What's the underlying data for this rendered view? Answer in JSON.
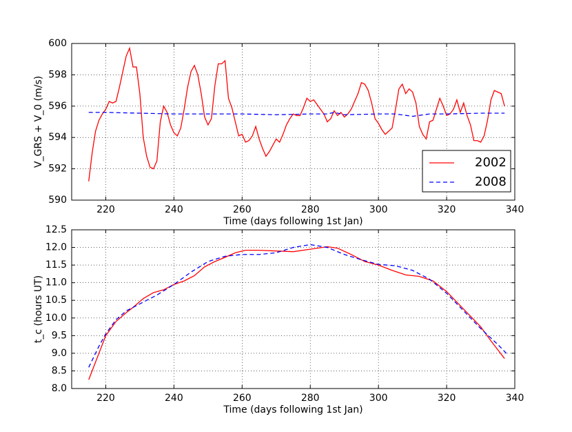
{
  "chart_data": [
    {
      "type": "line",
      "xlabel": "Time (days following 1st Jan)",
      "ylabel": "V_GRS + V_0 (m/s)",
      "xlim": [
        210,
        340
      ],
      "ylim": [
        590,
        600
      ],
      "xticks": [
        220,
        240,
        260,
        280,
        300,
        320,
        340
      ],
      "yticks": [
        590,
        592,
        594,
        596,
        598,
        600
      ],
      "grid": true,
      "legend": "lower right",
      "series": [
        {
          "name": "2002",
          "color": "#ff0000",
          "linestyle": "solid",
          "x": [
            215,
            216,
            217,
            218,
            219,
            220,
            221,
            222,
            223,
            224,
            225,
            226,
            227,
            228,
            229,
            230,
            231,
            232,
            233,
            234,
            235,
            236,
            237,
            238,
            239,
            240,
            241,
            242,
            243,
            244,
            245,
            246,
            247,
            248,
            249,
            250,
            251,
            252,
            253,
            254,
            255,
            256,
            257,
            258,
            259,
            260,
            261,
            262,
            263,
            264,
            265,
            266,
            267,
            268,
            269,
            270,
            271,
            272,
            273,
            274,
            275,
            276,
            277,
            278,
            279,
            280,
            281,
            282,
            283,
            284,
            285,
            286,
            287,
            288,
            289,
            290,
            291,
            292,
            293,
            294,
            295,
            296,
            297,
            298,
            299,
            300,
            301,
            302,
            303,
            304,
            305,
            306,
            307,
            308,
            309,
            310,
            311,
            312,
            313,
            314,
            315,
            316,
            317,
            318,
            319,
            320,
            321,
            322,
            323,
            324,
            325,
            326,
            327,
            328,
            329,
            330,
            331,
            332,
            333,
            334,
            335,
            336,
            337
          ],
          "values": [
            591.2,
            593,
            594.4,
            595.1,
            595.5,
            595.8,
            596.3,
            596.2,
            596.3,
            597.2,
            598.2,
            599.2,
            599.7,
            598.5,
            598.5,
            596.8,
            594,
            592.8,
            592.1,
            592,
            592.5,
            595,
            596,
            595.6,
            594.8,
            594.3,
            594.1,
            594.6,
            595.8,
            597.2,
            598.2,
            598.6,
            598,
            596.8,
            595.3,
            594.8,
            595.2,
            597.3,
            598.7,
            598.7,
            598.9,
            596.5,
            595.9,
            595,
            594.1,
            594.2,
            593.7,
            593.8,
            594.1,
            594.7,
            593.9,
            593.3,
            592.8,
            593.1,
            593.5,
            593.9,
            593.7,
            594.2,
            594.8,
            595.2,
            595.5,
            595.4,
            595.4,
            595.9,
            596.5,
            596.3,
            596.4,
            596.1,
            595.8,
            595.5,
            595,
            595.2,
            595.7,
            595.4,
            595.6,
            595.3,
            595.5,
            595.8,
            596.3,
            596.8,
            597.5,
            597.4,
            597,
            596.2,
            595.2,
            594.9,
            594.5,
            594.2,
            594.4,
            594.6,
            595.8,
            597.1,
            597.4,
            596.8,
            597.1,
            596.9,
            596.2,
            594.7,
            594.2,
            593.9,
            595,
            595.1,
            595.8,
            596.5,
            596,
            595.4,
            595.5,
            595.8,
            596.4,
            595.6,
            596.2,
            595.4,
            594.8,
            593.8,
            593.8,
            593.7,
            594.1,
            595.1,
            596.4,
            597,
            596.9,
            596.8,
            596
          ]
        },
        {
          "name": "2008",
          "color": "#0000ff",
          "linestyle": "dashed",
          "x": [
            215,
            220,
            230,
            240,
            250,
            260,
            270,
            280,
            285,
            287,
            290,
            300,
            305,
            310,
            315,
            320,
            330,
            337
          ],
          "values": [
            595.6,
            595.6,
            595.55,
            595.5,
            595.5,
            595.5,
            595.45,
            595.5,
            595.5,
            595.6,
            595.45,
            595.5,
            595.5,
            595.35,
            595.5,
            595.5,
            595.55,
            595.55
          ]
        }
      ]
    },
    {
      "type": "line",
      "xlabel": "Time (days following 1st Jan)",
      "ylabel": "t_c (hours UT)",
      "xlim": [
        210,
        340
      ],
      "ylim": [
        8,
        12.5
      ],
      "xticks": [
        220,
        240,
        260,
        280,
        300,
        320,
        340
      ],
      "yticks": [
        {
          "value": 8,
          "label": "8.0"
        },
        8.5,
        {
          "value": 9,
          "label": "9.0"
        },
        9.5,
        {
          "value": 10,
          "label": "10.0"
        },
        10.5,
        {
          "value": 11,
          "label": "11.0"
        },
        11.5,
        {
          "value": 12,
          "label": "12.0"
        },
        12.5
      ],
      "grid": true,
      "series": [
        {
          "color": "#ff0000",
          "linestyle": "solid",
          "x": [
            215,
            218,
            220,
            223,
            226,
            228,
            231,
            234,
            237,
            240,
            243,
            246,
            249,
            252,
            255,
            258,
            261,
            265,
            270,
            275,
            280,
            285,
            288,
            292,
            296,
            300,
            304,
            308,
            312,
            316,
            320,
            324,
            327,
            330,
            333,
            335,
            337
          ],
          "values": [
            8.25,
            9.0,
            9.5,
            9.9,
            10.15,
            10.3,
            10.55,
            10.72,
            10.8,
            10.95,
            11.05,
            11.2,
            11.45,
            11.6,
            11.72,
            11.85,
            11.92,
            11.92,
            11.9,
            11.88,
            11.95,
            12.02,
            11.98,
            11.8,
            11.6,
            11.5,
            11.35,
            11.22,
            11.18,
            11.05,
            10.75,
            10.35,
            10.05,
            9.75,
            9.35,
            9.1,
            8.85
          ]
        },
        {
          "color": "#0000ff",
          "linestyle": "dashed",
          "x": [
            215,
            218,
            220,
            223,
            226,
            230,
            235,
            240,
            245,
            250,
            255,
            260,
            265,
            270,
            275,
            280,
            285,
            290,
            295,
            300,
            305,
            310,
            315,
            320,
            325,
            330,
            335,
            338
          ],
          "values": [
            8.6,
            9.2,
            9.55,
            9.95,
            10.2,
            10.4,
            10.65,
            10.95,
            11.3,
            11.6,
            11.75,
            11.8,
            11.8,
            11.85,
            12.0,
            12.08,
            12.0,
            11.8,
            11.65,
            11.52,
            11.48,
            11.35,
            11.1,
            10.7,
            10.2,
            9.7,
            9.25,
            8.95
          ]
        }
      ]
    }
  ]
}
